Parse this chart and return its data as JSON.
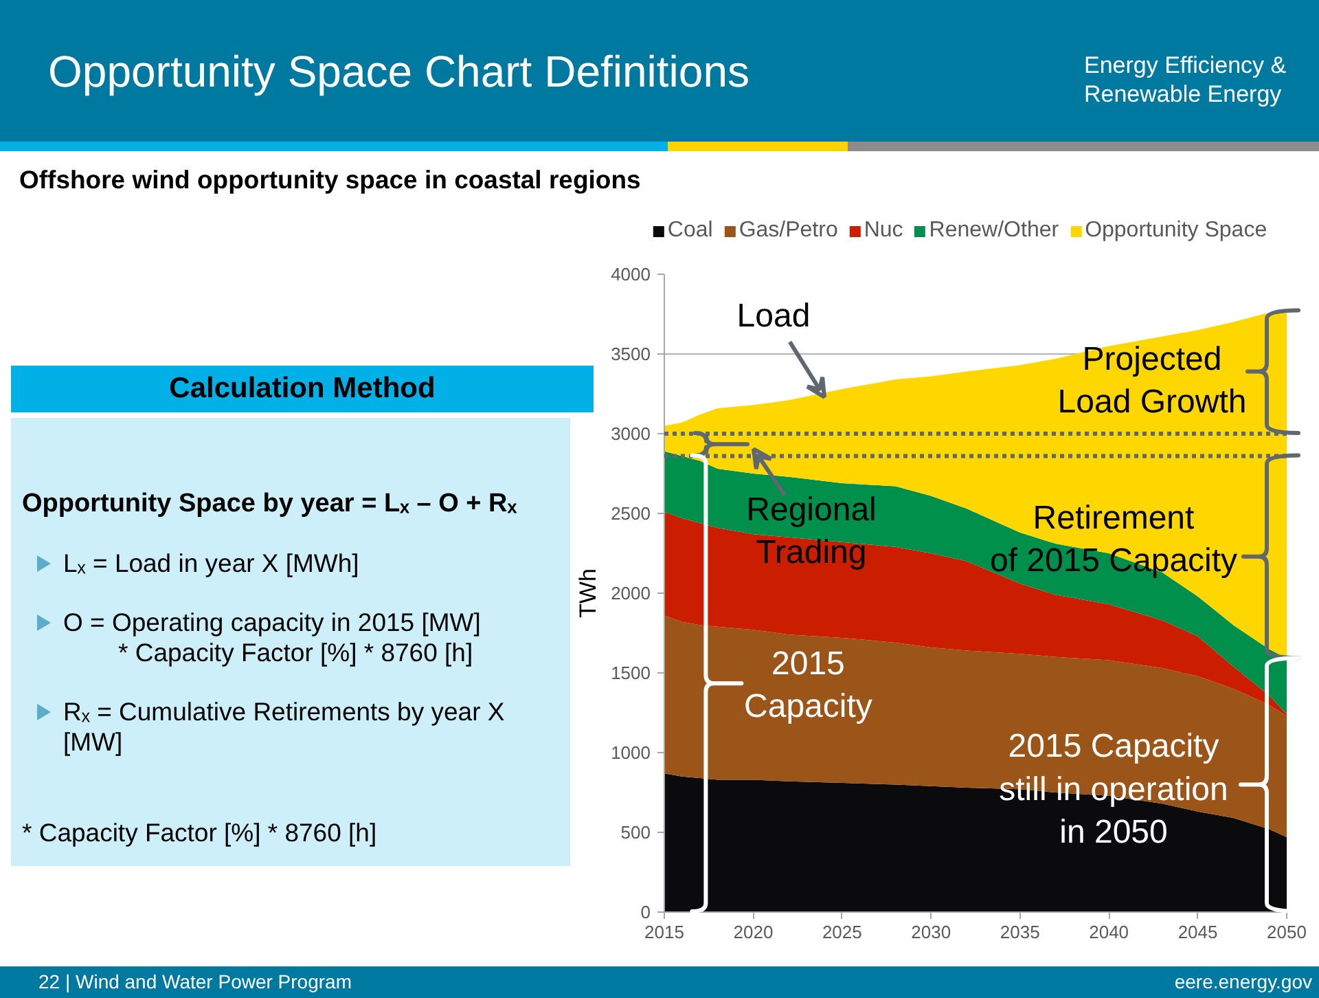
{
  "chart_data": {
    "type": "area",
    "stacked": true,
    "title": "Opportunity Space Chart Definitions",
    "subtitle": "Offshore wind opportunity space in coastal regions",
    "ylabel": "TWh",
    "x": [
      2015,
      2016,
      2017,
      2018,
      2020,
      2022,
      2025,
      2028,
      2030,
      2032,
      2035,
      2037,
      2040,
      2043,
      2045,
      2047,
      2049,
      2050
    ],
    "series": [
      {
        "name": "Coal",
        "color": "#0b0b0d",
        "values": [
          870,
          850,
          840,
          830,
          830,
          820,
          810,
          800,
          790,
          780,
          770,
          750,
          730,
          680,
          630,
          590,
          520,
          470
        ]
      },
      {
        "name": "Gas/Petro",
        "color": "#9c5519",
        "values": [
          990,
          970,
          960,
          960,
          940,
          920,
          910,
          890,
          870,
          860,
          850,
          850,
          850,
          850,
          850,
          810,
          780,
          760
        ]
      },
      {
        "name": "Nuc",
        "color": "#cb1d00",
        "values": [
          650,
          650,
          640,
          620,
          600,
          610,
          600,
          600,
          590,
          560,
          440,
          390,
          350,
          300,
          250,
          140,
          60,
          10
        ]
      },
      {
        "name": "Renew/Other",
        "color": "#00904c",
        "values": [
          380,
          390,
          390,
          370,
          380,
          380,
          370,
          380,
          360,
          330,
          320,
          320,
          320,
          300,
          250,
          260,
          290,
          350
        ]
      },
      {
        "name": "Opportunity Space",
        "color": "#ffd700",
        "values": [
          160,
          210,
          290,
          380,
          430,
          480,
          590,
          670,
          750,
          860,
          1050,
          1160,
          1300,
          1480,
          1670,
          1900,
          2110,
          2180
        ]
      }
    ],
    "xlim": [
      2015,
      2050
    ],
    "xticks": [
      2015,
      2020,
      2025,
      2030,
      2035,
      2040,
      2045,
      2050
    ],
    "ylim": [
      0,
      4000
    ],
    "yticks": [
      0,
      500,
      1000,
      1500,
      2000,
      2500,
      3000,
      3500,
      4000
    ],
    "grid": "y",
    "legend": "top",
    "ref_lines": [
      {
        "axis": "y",
        "value": 3000,
        "color": "#5f6770",
        "line_style": "dotted"
      },
      {
        "axis": "y",
        "value": 2860,
        "color": "#5f6770",
        "line_style": "dotted"
      }
    ],
    "annotations": [
      {
        "text": "Load",
        "x": 2024,
        "y": 3230
      },
      "Projected\nLoad Growth",
      "Regional\nTrading",
      "Retirement\nof 2015 Capacity",
      {
        "text": "2015\nCapacity",
        "x": 2016.6,
        "y": 2860
      },
      "2015 Capacity\nstill in operation\nin 2050",
      "Energy Efficiency &\nRenewable Energy",
      "Calculation Method",
      "Opportunity Space by year = Lₓ – O + Rₓ",
      "Lₓ = Load in year X [MWh]",
      "O = Operating capacity in 2015 [MW]\n* Capacity Factor [%] * 8760 [h]",
      "Rₓ = Cumulative Retirements by year X\n[MW]",
      "* Capacity Factor [%] * 8760 [h]",
      "22 | Wind and Water Power Program",
      "eere.energy.gov"
    ]
  }
}
